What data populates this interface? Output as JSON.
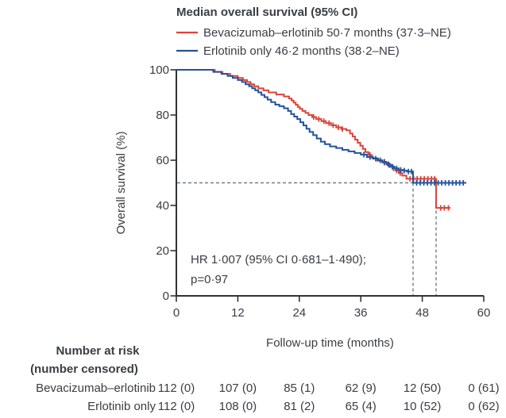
{
  "chart_data": {
    "type": "line",
    "subtype": "kaplan-meier-step",
    "title": "Median overall survival (95% CI)",
    "xlabel": "Follow-up time (months)",
    "ylabel": "Overall survival (%)",
    "xlim": [
      0,
      60
    ],
    "ylim": [
      0,
      100
    ],
    "x_ticks": [
      0,
      12,
      24,
      36,
      48,
      60
    ],
    "y_ticks": [
      100,
      80,
      60,
      40,
      20,
      0
    ],
    "grid": "off",
    "legend_position": "top-left-above-plot",
    "annotation": {
      "line1": "HR 1·007 (95% CI 0·681–1·490);",
      "line2": "p=0·97"
    },
    "median_guides": {
      "y_percent": 50,
      "x_months": [
        46.2,
        50.7
      ]
    },
    "series": [
      {
        "name": "Bevacizumab–erlotinib",
        "legend_label": "Bevacizumab–erlotinib 50·7 months (37·3–NE)",
        "median_months": 50.7,
        "median_ci": "37·3–NE",
        "color": "#d8453a",
        "steps": [
          [
            0,
            100
          ],
          [
            7.5,
            99.1
          ],
          [
            9,
            98.2
          ],
          [
            10.5,
            97.3
          ],
          [
            12,
            96.4
          ],
          [
            13,
            95.5
          ],
          [
            13.8,
            94.6
          ],
          [
            14.5,
            93.6
          ],
          [
            15.2,
            92.7
          ],
          [
            16,
            91.8
          ],
          [
            17,
            90.9
          ],
          [
            18,
            90
          ],
          [
            19.5,
            89.1
          ],
          [
            21,
            88.2
          ],
          [
            22,
            87.3
          ],
          [
            22.5,
            86.4
          ],
          [
            22.9,
            85.5
          ],
          [
            23.3,
            84.5
          ],
          [
            23.7,
            83.6
          ],
          [
            24.1,
            82.7
          ],
          [
            24.6,
            81.8
          ],
          [
            25.2,
            80.9
          ],
          [
            25.8,
            80
          ],
          [
            26.5,
            79.1
          ],
          [
            27.3,
            78.2
          ],
          [
            28.3,
            77.3
          ],
          [
            29.2,
            76.4
          ],
          [
            30.2,
            75.5
          ],
          [
            31.2,
            74.5
          ],
          [
            32.2,
            73.8
          ],
          [
            33.2,
            73.2
          ],
          [
            33.9,
            71.8
          ],
          [
            34.4,
            70.5
          ],
          [
            34.9,
            69.1
          ],
          [
            35.4,
            67.7
          ],
          [
            35.9,
            66.4
          ],
          [
            36.4,
            65
          ],
          [
            36.9,
            63.6
          ],
          [
            37.5,
            62.3
          ],
          [
            38.2,
            60.9
          ],
          [
            39.2,
            59.8
          ],
          [
            40.2,
            58.9
          ],
          [
            41.2,
            57.8
          ],
          [
            42.2,
            56.4
          ],
          [
            42.8,
            55.5
          ],
          [
            43.4,
            54.3
          ],
          [
            44.1,
            53.2
          ],
          [
            44.9,
            51.8
          ],
          [
            50.7,
            38.9
          ],
          [
            53.5,
            38.9
          ]
        ],
        "censors": [
          [
            26.8,
            79.1
          ],
          [
            27.8,
            78.2
          ],
          [
            28.8,
            77.3
          ],
          [
            29.8,
            76.4
          ],
          [
            30.6,
            75.5
          ],
          [
            31.6,
            74.5
          ],
          [
            32.4,
            73.8
          ],
          [
            37.8,
            62.3
          ],
          [
            40.6,
            58.9
          ],
          [
            41.6,
            57.8
          ],
          [
            42.4,
            56.4
          ],
          [
            43.0,
            55.5
          ],
          [
            43.7,
            54.3
          ],
          [
            45.6,
            51.8
          ],
          [
            46.3,
            51.8
          ],
          [
            47.0,
            51.8
          ],
          [
            47.7,
            51.8
          ],
          [
            48.4,
            51.8
          ],
          [
            49.1,
            51.8
          ],
          [
            49.8,
            51.8
          ],
          [
            50.4,
            51.8
          ],
          [
            51.6,
            38.9
          ],
          [
            52.3,
            38.9
          ],
          [
            53.1,
            38.9
          ]
        ]
      },
      {
        "name": "Erlotinib only",
        "legend_label": "Erlotinib only 46·2 months (38·2–NE)",
        "median_months": 46.2,
        "median_ci": "38·2–NE",
        "color": "#24529b",
        "steps": [
          [
            0,
            100
          ],
          [
            7.2,
            99.1
          ],
          [
            8.8,
            98.2
          ],
          [
            10,
            97.3
          ],
          [
            11,
            96.4
          ],
          [
            12,
            95.5
          ],
          [
            12.8,
            94.6
          ],
          [
            13.5,
            93.6
          ],
          [
            14.2,
            92.7
          ],
          [
            14.8,
            91.8
          ],
          [
            15.4,
            90.9
          ],
          [
            16,
            90
          ],
          [
            16.6,
            88.9
          ],
          [
            17.2,
            87.9
          ],
          [
            17.8,
            86.8
          ],
          [
            18.5,
            85.7
          ],
          [
            19.3,
            84.6
          ],
          [
            20.1,
            83.9
          ],
          [
            21,
            83
          ],
          [
            21.8,
            81.8
          ],
          [
            22.4,
            80.4
          ],
          [
            23,
            79.3
          ],
          [
            23.6,
            78.2
          ],
          [
            24.2,
            76.8
          ],
          [
            24.8,
            75.4
          ],
          [
            25.4,
            73.9
          ],
          [
            26,
            72.5
          ],
          [
            26.7,
            71.1
          ],
          [
            27.4,
            69.6
          ],
          [
            28.2,
            68.2
          ],
          [
            29,
            67.1
          ],
          [
            30,
            66.1
          ],
          [
            31.2,
            65.4
          ],
          [
            32.4,
            64.6
          ],
          [
            33.6,
            63.9
          ],
          [
            34.8,
            63.2
          ],
          [
            36,
            62.5
          ],
          [
            37.2,
            61.4
          ],
          [
            38.4,
            60.7
          ],
          [
            39.4,
            60
          ],
          [
            40.2,
            59.3
          ],
          [
            41,
            58.2
          ],
          [
            41.8,
            57.1
          ],
          [
            42.6,
            56.4
          ],
          [
            43.4,
            55.7
          ],
          [
            44.2,
            55.4
          ],
          [
            45,
            55
          ],
          [
            46.2,
            50
          ],
          [
            56.6,
            50
          ]
        ],
        "censors": [
          [
            36.6,
            62.5
          ],
          [
            37.8,
            61.4
          ],
          [
            38.9,
            60.7
          ],
          [
            39.8,
            60
          ],
          [
            40.6,
            59.3
          ],
          [
            41.4,
            58.2
          ],
          [
            42.2,
            57.1
          ],
          [
            43.0,
            56.4
          ],
          [
            43.8,
            55.7
          ],
          [
            44.5,
            55.4
          ],
          [
            45.3,
            55
          ],
          [
            45.9,
            55
          ],
          [
            46.9,
            50
          ],
          [
            47.6,
            50
          ],
          [
            48.3,
            50
          ],
          [
            49.0,
            50
          ],
          [
            49.7,
            50
          ],
          [
            50.4,
            50
          ],
          [
            51.1,
            50
          ],
          [
            51.8,
            50
          ],
          [
            52.5,
            50
          ],
          [
            53.2,
            50
          ],
          [
            53.9,
            50
          ],
          [
            54.6,
            50
          ],
          [
            55.3,
            50
          ],
          [
            56.0,
            50
          ]
        ]
      }
    ]
  },
  "risk_table": {
    "header_line1": "Number at risk",
    "header_line2": "(number censored)",
    "rows": [
      {
        "label": "Bevacizumab–erlotinib",
        "values": [
          "112 (0)",
          "107 (0)",
          "85 (1)",
          "62 (9)",
          "12 (50)",
          "0 (61)"
        ]
      },
      {
        "label": "Erlotinib only",
        "values": [
          "112 (0)",
          "108 (0)",
          "81 (2)",
          "65 (4)",
          "10 (52)",
          "0 (62)"
        ]
      }
    ]
  }
}
